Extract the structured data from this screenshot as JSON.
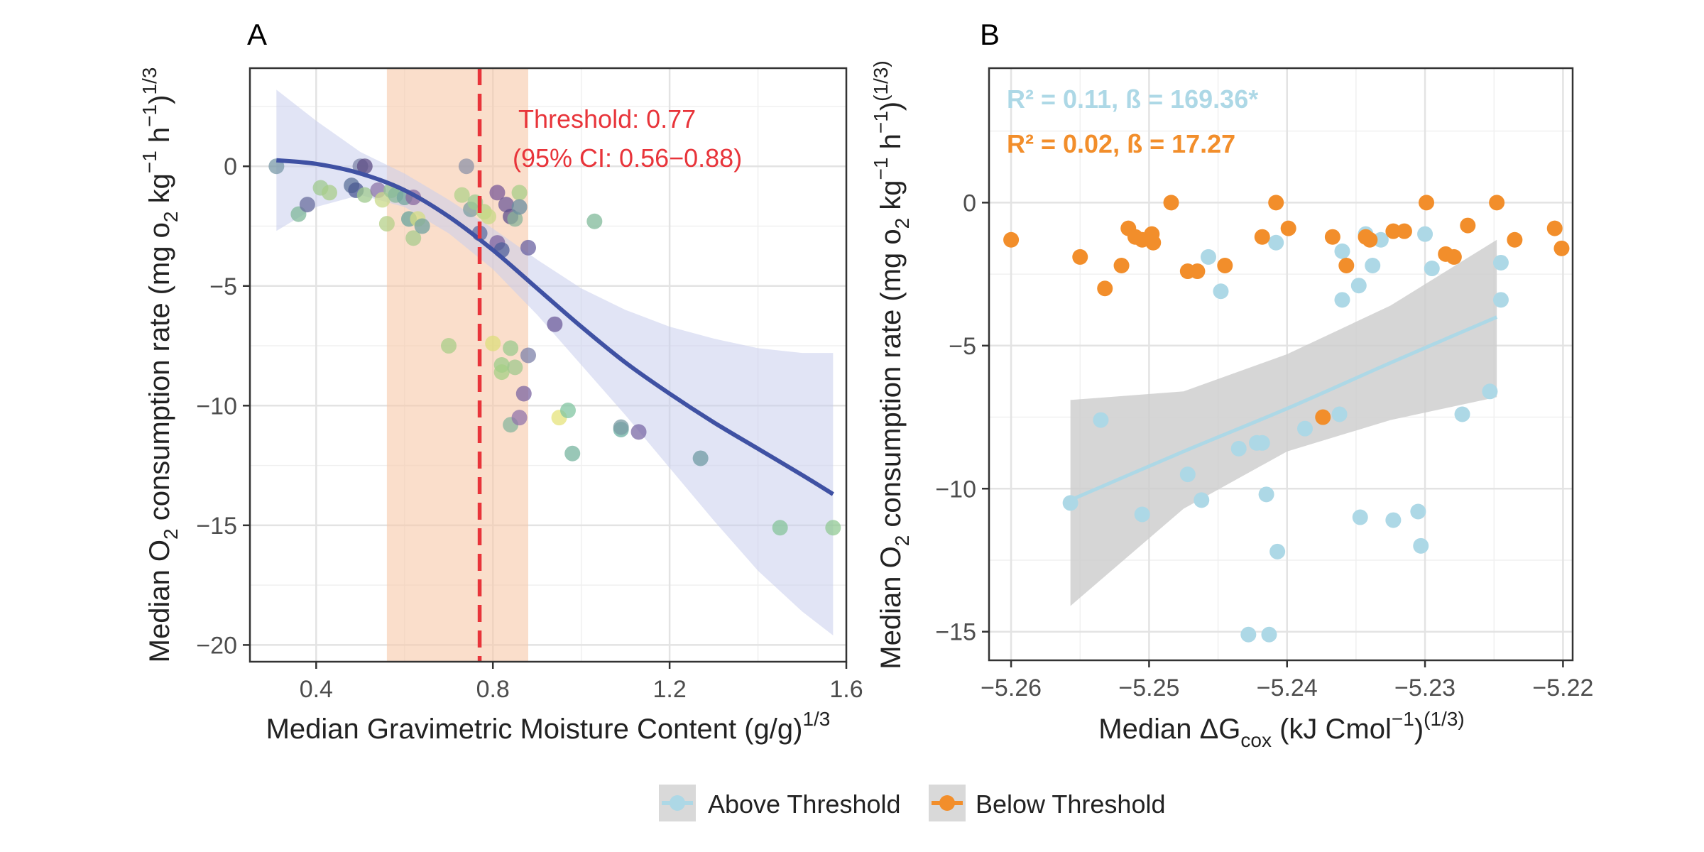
{
  "legend": {
    "items": [
      {
        "label": "Above Threshold",
        "color": "#add8e6"
      },
      {
        "label": "Below Threshold",
        "color": "#f28e2b"
      }
    ]
  },
  "chart_data": [
    {
      "panel": "A",
      "type": "scatter",
      "xlabel_main": "Median Gravimetric Moisture Content (g/g)",
      "xlabel_sup": "1/3",
      "ylabel": {
        "pre": "Median O",
        "sub1": "2",
        "mid": " consumption rate (mg o",
        "sub2": "2",
        "kg": " kg",
        "sup1": "−1",
        "h": " h",
        "sup2": "−1",
        "close": ")",
        "sup3": "1/3"
      },
      "xlim": [
        0.25,
        1.6
      ],
      "ylim": [
        -20.7,
        4.1
      ],
      "xticks": [
        0.4,
        0.8,
        1.2,
        1.6
      ],
      "xtick_labels": [
        "0.4",
        "0.8",
        "1.2",
        "1.6"
      ],
      "yticks": [
        0,
        -5,
        -10,
        -15,
        -20
      ],
      "ytick_labels": [
        "0",
        "−5",
        "−10",
        "−15",
        "−20"
      ],
      "grid": true,
      "threshold": {
        "value": 0.77,
        "ci": [
          0.56,
          0.88
        ],
        "label1": "Threshold: 0.77",
        "label2": "(95% CI: 0.56−0.88)",
        "color": "#e8343a",
        "band_color": "#f7c8a9"
      },
      "fit_curve": {
        "color": "#3f51a3",
        "band_color": "#c9cdec",
        "x": [
          0.31,
          0.4,
          0.5,
          0.6,
          0.7,
          0.8,
          0.9,
          1.0,
          1.1,
          1.2,
          1.3,
          1.4,
          1.5,
          1.57
        ],
        "y": [
          0.25,
          0.1,
          -0.3,
          -1.0,
          -2.1,
          -3.5,
          -5.1,
          -6.7,
          -8.2,
          -9.5,
          -10.7,
          -11.8,
          -12.9,
          -13.7
        ],
        "lower": [
          -2.7,
          -1.7,
          -1.2,
          -1.7,
          -2.8,
          -4.3,
          -6.2,
          -8.3,
          -10.4,
          -12.6,
          -14.8,
          -16.9,
          -18.6,
          -19.6
        ],
        "upper": [
          3.2,
          1.9,
          0.6,
          -0.3,
          -1.4,
          -2.6,
          -3.9,
          -5.1,
          -6.0,
          -6.7,
          -7.2,
          -7.6,
          -7.8,
          -7.8
        ]
      },
      "points": [
        {
          "x": 0.31,
          "y": 0.0,
          "color": "#7a9aa8"
        },
        {
          "x": 0.36,
          "y": -2.0,
          "color": "#7fb89a"
        },
        {
          "x": 0.38,
          "y": -1.6,
          "color": "#6a6f9e"
        },
        {
          "x": 0.41,
          "y": -0.9,
          "color": "#9fc98f"
        },
        {
          "x": 0.43,
          "y": -1.1,
          "color": "#a8cd8a"
        },
        {
          "x": 0.48,
          "y": -0.8,
          "color": "#5c7399"
        },
        {
          "x": 0.49,
          "y": -1.0,
          "color": "#4b5a92"
        },
        {
          "x": 0.5,
          "y": 0.0,
          "color": "#7d86a8"
        },
        {
          "x": 0.51,
          "y": 0.0,
          "color": "#5d4d86"
        },
        {
          "x": 0.51,
          "y": -1.2,
          "color": "#9fca8e"
        },
        {
          "x": 0.54,
          "y": -1.0,
          "color": "#8c77a8"
        },
        {
          "x": 0.55,
          "y": -1.4,
          "color": "#c9d98a"
        },
        {
          "x": 0.56,
          "y": -2.4,
          "color": "#b5d08a"
        },
        {
          "x": 0.57,
          "y": -1.0,
          "color": "#98c493"
        },
        {
          "x": 0.58,
          "y": -1.2,
          "color": "#85b89a"
        },
        {
          "x": 0.6,
          "y": -1.3,
          "color": "#72a69d"
        },
        {
          "x": 0.61,
          "y": -2.2,
          "color": "#6aa49c"
        },
        {
          "x": 0.62,
          "y": -1.3,
          "color": "#8a6aa0"
        },
        {
          "x": 0.62,
          "y": -3.0,
          "color": "#a8cb8d"
        },
        {
          "x": 0.63,
          "y": -2.2,
          "color": "#d3dc86"
        },
        {
          "x": 0.64,
          "y": -2.5,
          "color": "#70a1a0"
        },
        {
          "x": 0.7,
          "y": -7.5,
          "color": "#aacd88"
        },
        {
          "x": 0.73,
          "y": -1.2,
          "color": "#b1d18b"
        },
        {
          "x": 0.74,
          "y": 0.0,
          "color": "#8e93a8"
        },
        {
          "x": 0.75,
          "y": -1.8,
          "color": "#7c9fa2"
        },
        {
          "x": 0.76,
          "y": -1.5,
          "color": "#9ccc90"
        },
        {
          "x": 0.77,
          "y": -2.8,
          "color": "#5d6ca0"
        },
        {
          "x": 0.78,
          "y": -1.9,
          "color": "#b7d285"
        },
        {
          "x": 0.79,
          "y": -2.1,
          "color": "#c8d987"
        },
        {
          "x": 0.8,
          "y": -7.4,
          "color": "#dede7c"
        },
        {
          "x": 0.81,
          "y": -1.1,
          "color": "#7b5a98"
        },
        {
          "x": 0.81,
          "y": -3.2,
          "color": "#7b62a0"
        },
        {
          "x": 0.82,
          "y": -3.5,
          "color": "#4f5f9a"
        },
        {
          "x": 0.82,
          "y": -8.3,
          "color": "#9ccc8a"
        },
        {
          "x": 0.82,
          "y": -8.6,
          "color": "#a6cf86"
        },
        {
          "x": 0.83,
          "y": -1.6,
          "color": "#6f5b9a"
        },
        {
          "x": 0.84,
          "y": -2.1,
          "color": "#5e4f8c"
        },
        {
          "x": 0.84,
          "y": -7.6,
          "color": "#9bc98e"
        },
        {
          "x": 0.84,
          "y": -10.8,
          "color": "#88b59e"
        },
        {
          "x": 0.85,
          "y": -2.2,
          "color": "#8ab49a"
        },
        {
          "x": 0.85,
          "y": -8.4,
          "color": "#a0c88e"
        },
        {
          "x": 0.86,
          "y": -1.1,
          "color": "#a8cd88"
        },
        {
          "x": 0.86,
          "y": -1.7,
          "color": "#6b8ea0"
        },
        {
          "x": 0.86,
          "y": -10.5,
          "color": "#9174ab"
        },
        {
          "x": 0.87,
          "y": -9.5,
          "color": "#7c66a1"
        },
        {
          "x": 0.88,
          "y": -3.4,
          "color": "#6a61a2"
        },
        {
          "x": 0.88,
          "y": -7.9,
          "color": "#7d82aa"
        },
        {
          "x": 0.94,
          "y": -6.6,
          "color": "#6d5d9b"
        },
        {
          "x": 0.95,
          "y": -10.5,
          "color": "#e6e37b"
        },
        {
          "x": 0.97,
          "y": -10.2,
          "color": "#82c5a2"
        },
        {
          "x": 0.98,
          "y": -12.0,
          "color": "#77b49f"
        },
        {
          "x": 1.03,
          "y": -2.3,
          "color": "#80b99a"
        },
        {
          "x": 1.09,
          "y": -11.0,
          "color": "#6bb0a3"
        },
        {
          "x": 1.09,
          "y": -10.9,
          "color": "#7b9ca4"
        },
        {
          "x": 1.13,
          "y": -11.1,
          "color": "#7a6aa5"
        },
        {
          "x": 1.27,
          "y": -12.2,
          "color": "#6f9ba3"
        },
        {
          "x": 1.45,
          "y": -15.1,
          "color": "#86c49a"
        },
        {
          "x": 1.57,
          "y": -15.1,
          "color": "#91c994"
        }
      ]
    },
    {
      "panel": "B",
      "type": "scatter",
      "xlabel": {
        "pre": "Median ΔG",
        "sub": "cox",
        "mid": " (kJ Cmol",
        "sup": "−1",
        "close": ")",
        "sup2": "(1/3)"
      },
      "ylabel": {
        "pre": "Median O",
        "sub1": "2",
        "mid": " consumption rate (mg o",
        "sub2": "2",
        "kg": " kg",
        "sup1": "−1",
        "h": " h",
        "sup2": "−1",
        "close": ")",
        "sup3": "(1/3)"
      },
      "xlim": [
        -5.2616,
        -5.2193
      ],
      "ylim": [
        -16.0,
        4.7
      ],
      "xticks": [
        -5.26,
        -5.25,
        -5.24,
        -5.23,
        -5.22
      ],
      "xtick_labels": [
        "−5.26",
        "−5.25",
        "−5.24",
        "−5.23",
        "−5.22"
      ],
      "yticks": [
        0,
        -5,
        -10,
        -15
      ],
      "ytick_labels": [
        "0",
        "−5",
        "−10",
        "−15"
      ],
      "grid": true,
      "annotations": [
        {
          "text": "R² = 0.11, ß = 169.36*",
          "color": "#add8e6"
        },
        {
          "text": "R² = 0.02, ß = 17.27",
          "color": "#f28e2b"
        }
      ],
      "fit_line": {
        "series": "Above Threshold",
        "color": "#add8e6",
        "band_color": "#cccccc",
        "x": [
          -5.2557,
          -5.2475,
          -5.24,
          -5.2325,
          -5.2248
        ],
        "y": [
          -10.4,
          -8.7,
          -7.2,
          -5.6,
          -4.0
        ],
        "lower": [
          -14.1,
          -10.7,
          -8.7,
          -7.6,
          -6.8
        ],
        "upper": [
          -6.9,
          -6.6,
          -5.3,
          -3.6,
          -1.3
        ]
      },
      "series": [
        {
          "name": "Above Threshold",
          "color": "#add8e6",
          "points": [
            {
              "x": -5.2557,
              "y": -10.5
            },
            {
              "x": -5.2535,
              "y": -7.6
            },
            {
              "x": -5.2505,
              "y": -10.9
            },
            {
              "x": -5.2472,
              "y": -9.5
            },
            {
              "x": -5.2462,
              "y": -10.4
            },
            {
              "x": -5.2457,
              "y": -1.9
            },
            {
              "x": -5.2448,
              "y": -3.1
            },
            {
              "x": -5.2435,
              "y": -8.6
            },
            {
              "x": -5.2428,
              "y": -15.1
            },
            {
              "x": -5.2422,
              "y": -8.4
            },
            {
              "x": -5.2418,
              "y": -8.4
            },
            {
              "x": -5.2415,
              "y": -10.2
            },
            {
              "x": -5.2413,
              "y": -15.1
            },
            {
              "x": -5.2408,
              "y": -1.4
            },
            {
              "x": -5.2407,
              "y": -12.2
            },
            {
              "x": -5.2387,
              "y": -7.9
            },
            {
              "x": -5.2362,
              "y": -7.4
            },
            {
              "x": -5.236,
              "y": -1.7
            },
            {
              "x": -5.236,
              "y": -3.4
            },
            {
              "x": -5.2348,
              "y": -2.9
            },
            {
              "x": -5.2347,
              "y": -11.0
            },
            {
              "x": -5.2343,
              "y": -1.1
            },
            {
              "x": -5.2338,
              "y": -2.2
            },
            {
              "x": -5.2332,
              "y": -1.3
            },
            {
              "x": -5.2323,
              "y": -11.1
            },
            {
              "x": -5.2305,
              "y": -10.8
            },
            {
              "x": -5.2303,
              "y": -12.0
            },
            {
              "x": -5.23,
              "y": -1.1
            },
            {
              "x": -5.2295,
              "y": -2.3
            },
            {
              "x": -5.2273,
              "y": -7.4
            },
            {
              "x": -5.2253,
              "y": -6.6
            },
            {
              "x": -5.2245,
              "y": -2.1
            },
            {
              "x": -5.2245,
              "y": -3.4
            }
          ]
        },
        {
          "name": "Below Threshold",
          "color": "#f28e2b",
          "points": [
            {
              "x": -5.26,
              "y": -1.3
            },
            {
              "x": -5.255,
              "y": -1.9
            },
            {
              "x": -5.2532,
              "y": -3.0
            },
            {
              "x": -5.252,
              "y": -2.2
            },
            {
              "x": -5.2515,
              "y": -0.9
            },
            {
              "x": -5.251,
              "y": -1.2
            },
            {
              "x": -5.2505,
              "y": -1.3
            },
            {
              "x": -5.2498,
              "y": -1.1
            },
            {
              "x": -5.2497,
              "y": -1.4
            },
            {
              "x": -5.2484,
              "y": 0.0
            },
            {
              "x": -5.2472,
              "y": -2.4
            },
            {
              "x": -5.2465,
              "y": -2.4
            },
            {
              "x": -5.2445,
              "y": -2.2
            },
            {
              "x": -5.2418,
              "y": -1.2
            },
            {
              "x": -5.2408,
              "y": 0.0
            },
            {
              "x": -5.2399,
              "y": -0.9
            },
            {
              "x": -5.2374,
              "y": -7.5
            },
            {
              "x": -5.2367,
              "y": -1.2
            },
            {
              "x": -5.2357,
              "y": -2.2
            },
            {
              "x": -5.2343,
              "y": -1.2
            },
            {
              "x": -5.234,
              "y": -1.3
            },
            {
              "x": -5.2323,
              "y": -1.0
            },
            {
              "x": -5.2315,
              "y": -1.0
            },
            {
              "x": -5.2299,
              "y": 0.0
            },
            {
              "x": -5.2285,
              "y": -1.8
            },
            {
              "x": -5.2279,
              "y": -1.9
            },
            {
              "x": -5.2269,
              "y": -0.8
            },
            {
              "x": -5.2248,
              "y": 0.0
            },
            {
              "x": -5.2235,
              "y": -1.3
            },
            {
              "x": -5.2206,
              "y": -0.9
            },
            {
              "x": -5.2201,
              "y": -1.6
            }
          ]
        }
      ]
    }
  ]
}
